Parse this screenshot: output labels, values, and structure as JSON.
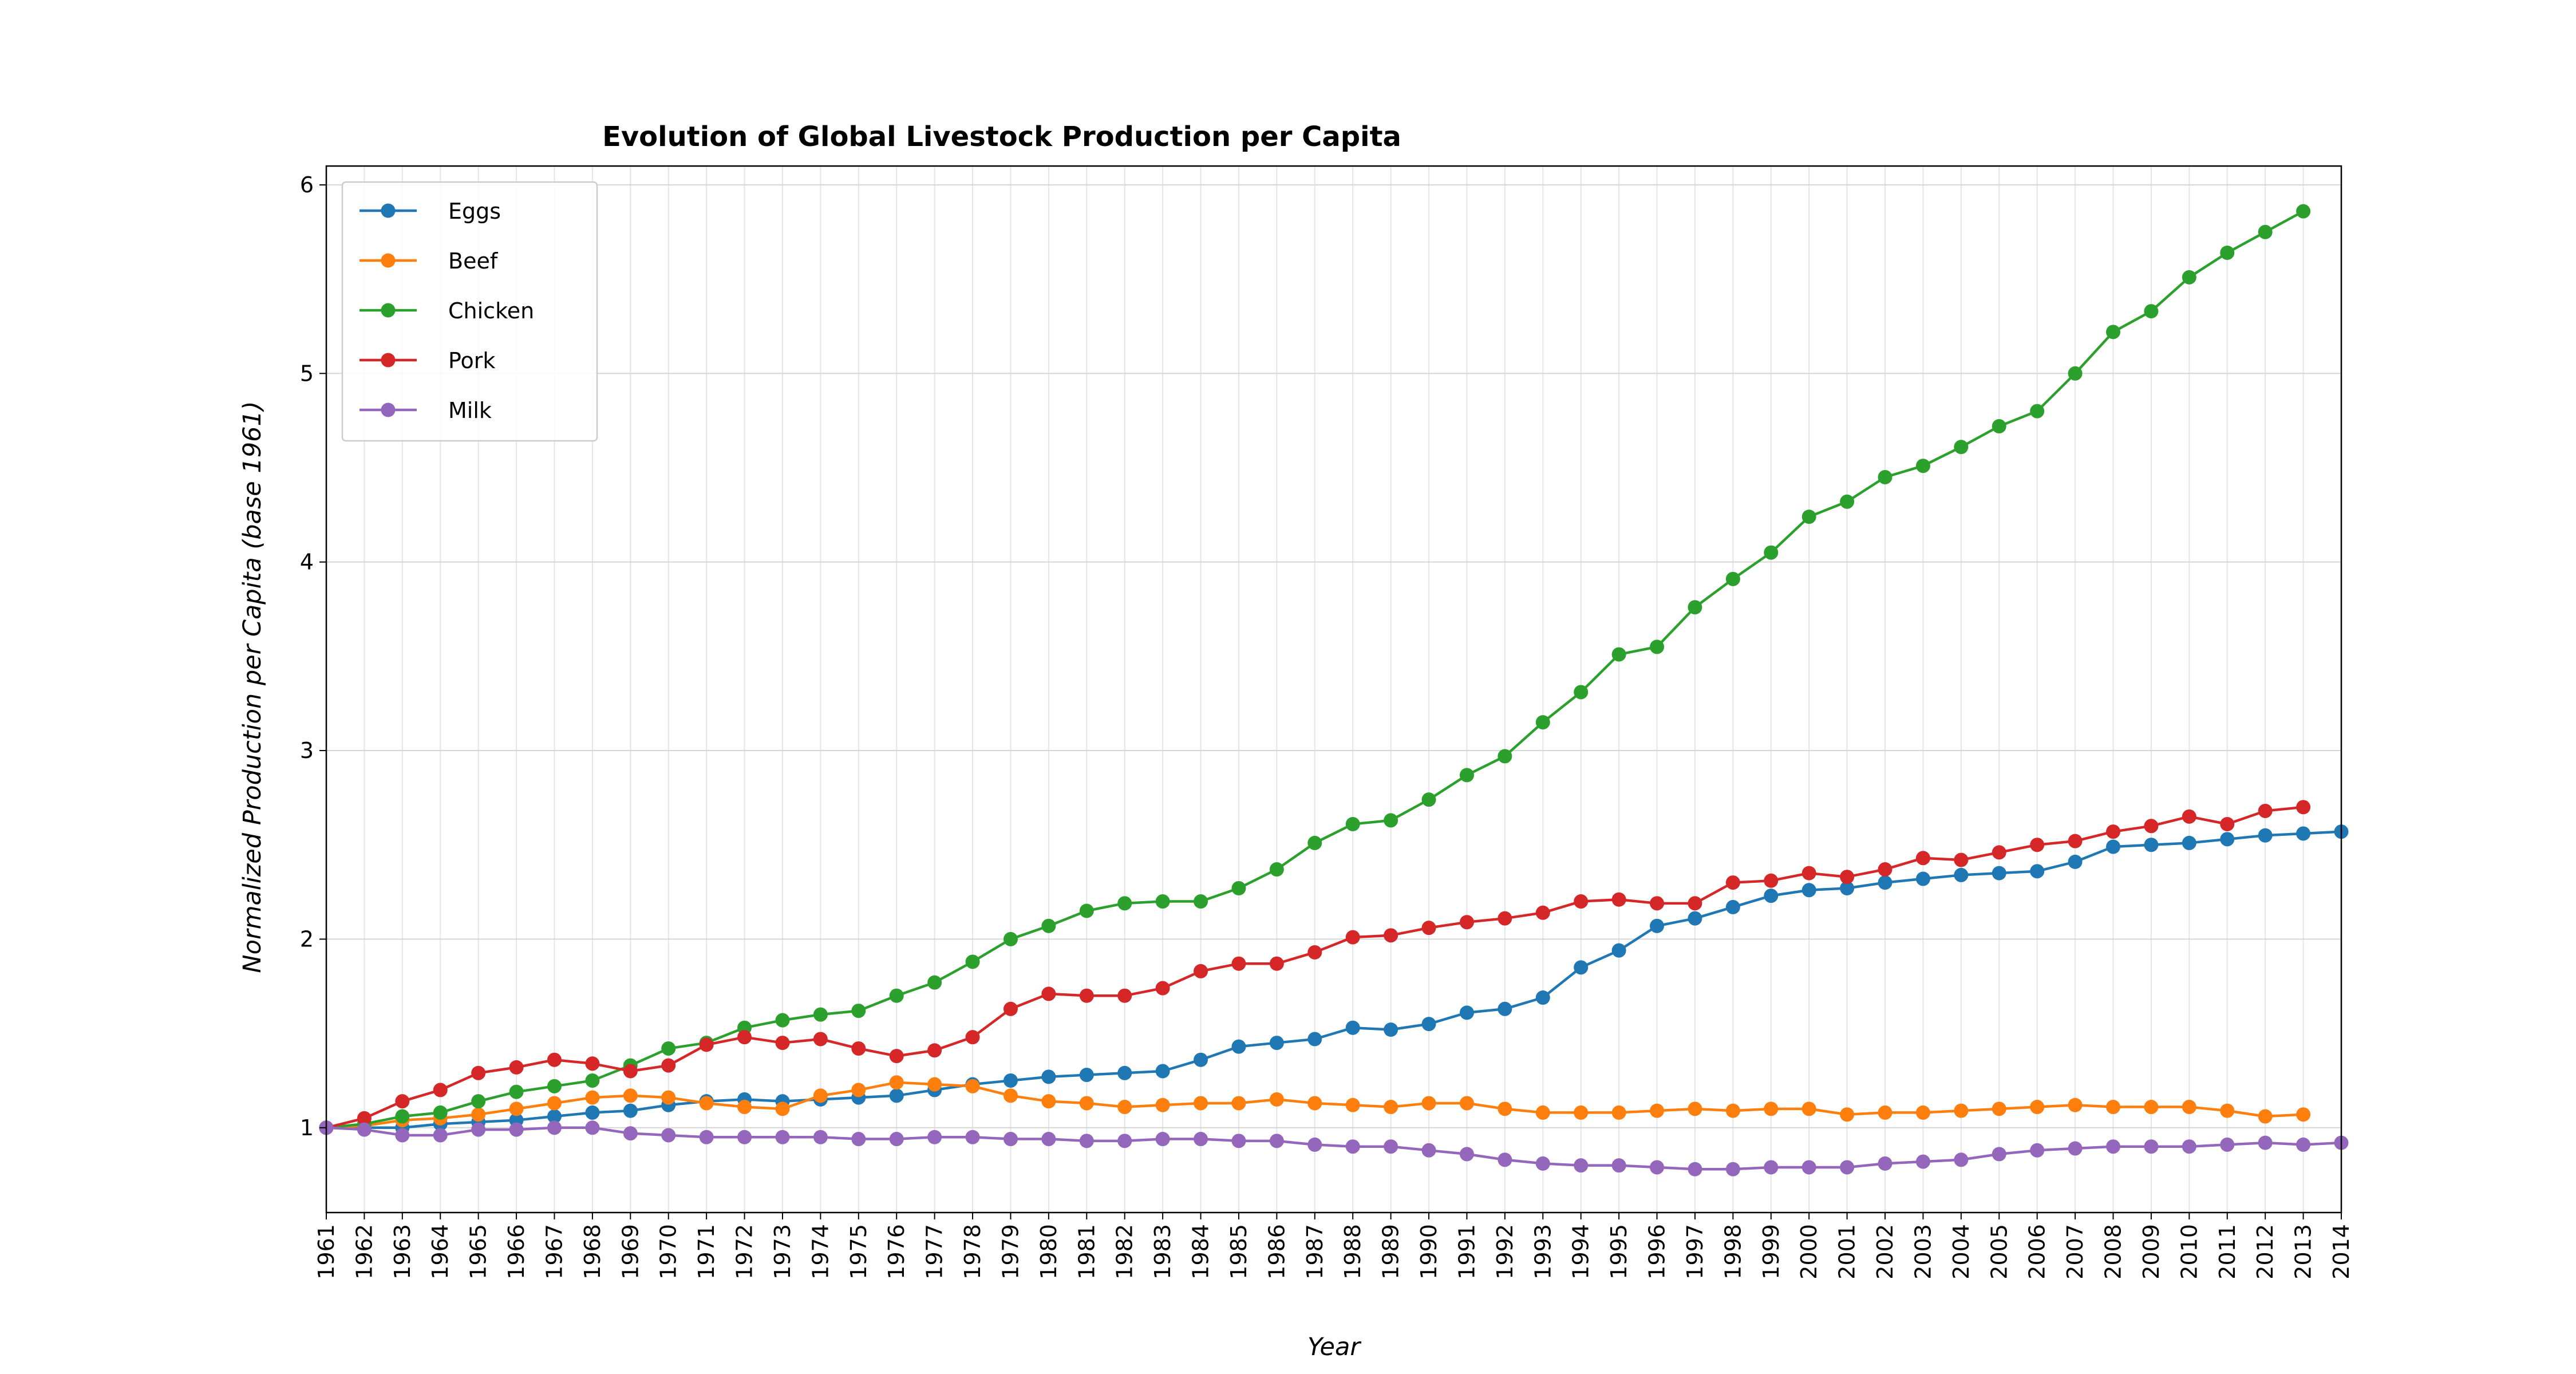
{
  "chart_data": {
    "type": "line",
    "title": "Evolution of Global Livestock Production per Capita",
    "xlabel": "Year",
    "ylabel": "Normalized Production per Capita (base 1961)",
    "xlim": [
      1961,
      2014
    ],
    "ylim": [
      0.55,
      6.1
    ],
    "yticks": [
      1,
      2,
      3,
      4,
      5,
      6
    ],
    "grid": true,
    "legend_position": "upper-left",
    "x": [
      1961,
      1962,
      1963,
      1964,
      1965,
      1966,
      1967,
      1968,
      1969,
      1970,
      1971,
      1972,
      1973,
      1974,
      1975,
      1976,
      1977,
      1978,
      1979,
      1980,
      1981,
      1982,
      1983,
      1984,
      1985,
      1986,
      1987,
      1988,
      1989,
      1990,
      1991,
      1992,
      1993,
      1994,
      1995,
      1996,
      1997,
      1998,
      1999,
      2000,
      2001,
      2002,
      2003,
      2004,
      2005,
      2006,
      2007,
      2008,
      2009,
      2010,
      2011,
      2012,
      2013,
      2014
    ],
    "series": [
      {
        "name": "Eggs",
        "color": "#1f77b4",
        "values": [
          1.0,
          1.0,
          1.0,
          1.02,
          1.03,
          1.04,
          1.06,
          1.08,
          1.09,
          1.12,
          1.14,
          1.15,
          1.14,
          1.15,
          1.16,
          1.17,
          1.2,
          1.23,
          1.25,
          1.27,
          1.28,
          1.29,
          1.3,
          1.36,
          1.43,
          1.45,
          1.47,
          1.53,
          1.52,
          1.55,
          1.61,
          1.63,
          1.69,
          1.85,
          1.94,
          2.07,
          2.11,
          2.17,
          2.23,
          2.26,
          2.27,
          2.3,
          2.32,
          2.34,
          2.35,
          2.36,
          2.41,
          2.49,
          2.5,
          2.51,
          2.53,
          2.55,
          2.56,
          2.57
        ]
      },
      {
        "name": "Beef",
        "color": "#ff7f0e",
        "values": [
          1.0,
          1.01,
          1.04,
          1.05,
          1.07,
          1.1,
          1.13,
          1.16,
          1.17,
          1.16,
          1.13,
          1.11,
          1.1,
          1.17,
          1.2,
          1.24,
          1.23,
          1.22,
          1.17,
          1.14,
          1.13,
          1.11,
          1.12,
          1.13,
          1.13,
          1.15,
          1.13,
          1.12,
          1.11,
          1.13,
          1.13,
          1.1,
          1.08,
          1.08,
          1.08,
          1.09,
          1.1,
          1.09,
          1.1,
          1.1,
          1.07,
          1.08,
          1.08,
          1.09,
          1.1,
          1.11,
          1.12,
          1.11,
          1.11,
          1.11,
          1.09,
          1.06,
          1.07,
          null
        ]
      },
      {
        "name": "Chicken",
        "color": "#2ca02c",
        "values": [
          1.0,
          1.02,
          1.06,
          1.08,
          1.14,
          1.19,
          1.22,
          1.25,
          1.33,
          1.42,
          1.45,
          1.53,
          1.57,
          1.6,
          1.62,
          1.7,
          1.77,
          1.88,
          2.0,
          2.07,
          2.15,
          2.19,
          2.2,
          2.2,
          2.27,
          2.37,
          2.51,
          2.61,
          2.63,
          2.74,
          2.87,
          2.97,
          3.15,
          3.31,
          3.51,
          3.55,
          3.76,
          3.91,
          4.05,
          4.24,
          4.32,
          4.45,
          4.51,
          4.61,
          4.72,
          4.8,
          5.0,
          5.22,
          5.33,
          5.51,
          5.64,
          5.75,
          5.86,
          null
        ]
      },
      {
        "name": "Pork",
        "color": "#d62728",
        "values": [
          1.0,
          1.05,
          1.14,
          1.2,
          1.29,
          1.32,
          1.36,
          1.34,
          1.3,
          1.33,
          1.44,
          1.48,
          1.45,
          1.47,
          1.42,
          1.38,
          1.41,
          1.48,
          1.63,
          1.71,
          1.7,
          1.7,
          1.74,
          1.83,
          1.87,
          1.87,
          1.93,
          2.01,
          2.02,
          2.06,
          2.09,
          2.11,
          2.14,
          2.2,
          2.21,
          2.19,
          2.19,
          2.3,
          2.31,
          2.35,
          2.33,
          2.37,
          2.43,
          2.42,
          2.46,
          2.5,
          2.52,
          2.57,
          2.6,
          2.65,
          2.61,
          2.68,
          2.7,
          null
        ]
      },
      {
        "name": "Milk",
        "color": "#9467bd",
        "values": [
          1.0,
          0.99,
          0.96,
          0.96,
          0.99,
          0.99,
          1.0,
          1.0,
          0.97,
          0.96,
          0.95,
          0.95,
          0.95,
          0.95,
          0.94,
          0.94,
          0.95,
          0.95,
          0.94,
          0.94,
          0.93,
          0.93,
          0.94,
          0.94,
          0.93,
          0.93,
          0.91,
          0.9,
          0.9,
          0.88,
          0.86,
          0.83,
          0.81,
          0.8,
          0.8,
          0.79,
          0.78,
          0.78,
          0.79,
          0.79,
          0.79,
          0.81,
          0.82,
          0.83,
          0.86,
          0.88,
          0.89,
          0.9,
          0.9,
          0.9,
          0.91,
          0.92,
          0.91,
          0.92
        ]
      }
    ]
  }
}
